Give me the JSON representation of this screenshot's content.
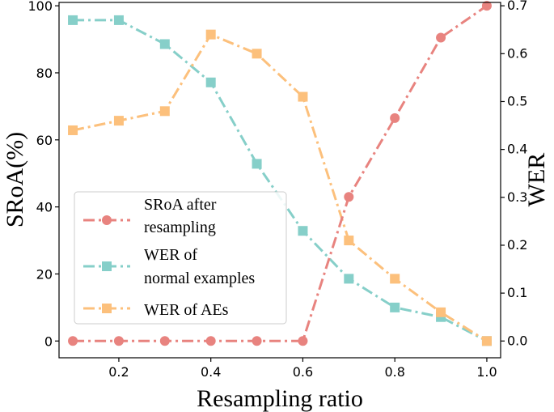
{
  "chart_data": {
    "type": "line",
    "x": [
      0.1,
      0.2,
      0.3,
      0.4,
      0.5,
      0.6,
      0.7,
      0.8,
      0.9,
      1.0
    ],
    "xlabel": "Resampling ratio",
    "ylabel_left": "SRoA(%)",
    "ylabel_right": "WER",
    "xlim": [
      0.07,
      1.03
    ],
    "ylim_left": [
      -5,
      101
    ],
    "ylim_right": [
      -0.035,
      0.707
    ],
    "x_ticks": [
      0.2,
      0.4,
      0.6,
      0.8,
      1.0
    ],
    "x_tick_labels": [
      "0.2",
      "0.4",
      "0.6",
      "0.8",
      "1.0"
    ],
    "y_left_ticks": [
      0,
      20,
      40,
      60,
      80,
      100
    ],
    "y_left_tick_labels": [
      "0",
      "20",
      "40",
      "60",
      "80",
      "100"
    ],
    "y_right_ticks": [
      0.0,
      0.1,
      0.2,
      0.3,
      0.4,
      0.5,
      0.6,
      0.7
    ],
    "y_right_tick_labels": [
      "0.0",
      "0.1",
      "0.2",
      "0.3",
      "0.4",
      "0.5",
      "0.6",
      "0.7"
    ],
    "grid": false,
    "legend_position": "lower-left",
    "series": [
      {
        "name": "SRoA after resampling",
        "legend_lines": [
          "SRoA after",
          "resampling"
        ],
        "axis": "left",
        "marker": "circle",
        "color": "#e8837f",
        "values": [
          0,
          0,
          0,
          0,
          0,
          0,
          43,
          66.5,
          90.5,
          100
        ]
      },
      {
        "name": "WER of normal examples",
        "legend_lines": [
          "WER of",
          "normal examples"
        ],
        "axis": "right",
        "marker": "square",
        "color": "#86cfc9",
        "values": [
          0.67,
          0.67,
          0.62,
          0.54,
          0.37,
          0.23,
          0.13,
          0.07,
          0.05,
          0.0
        ]
      },
      {
        "name": "WER of AEs",
        "legend_lines": [
          "WER of AEs"
        ],
        "axis": "right",
        "marker": "square",
        "color": "#fcc07c",
        "values": [
          0.44,
          0.46,
          0.48,
          0.64,
          0.6,
          0.51,
          0.21,
          0.13,
          0.06,
          0.0
        ]
      }
    ]
  }
}
